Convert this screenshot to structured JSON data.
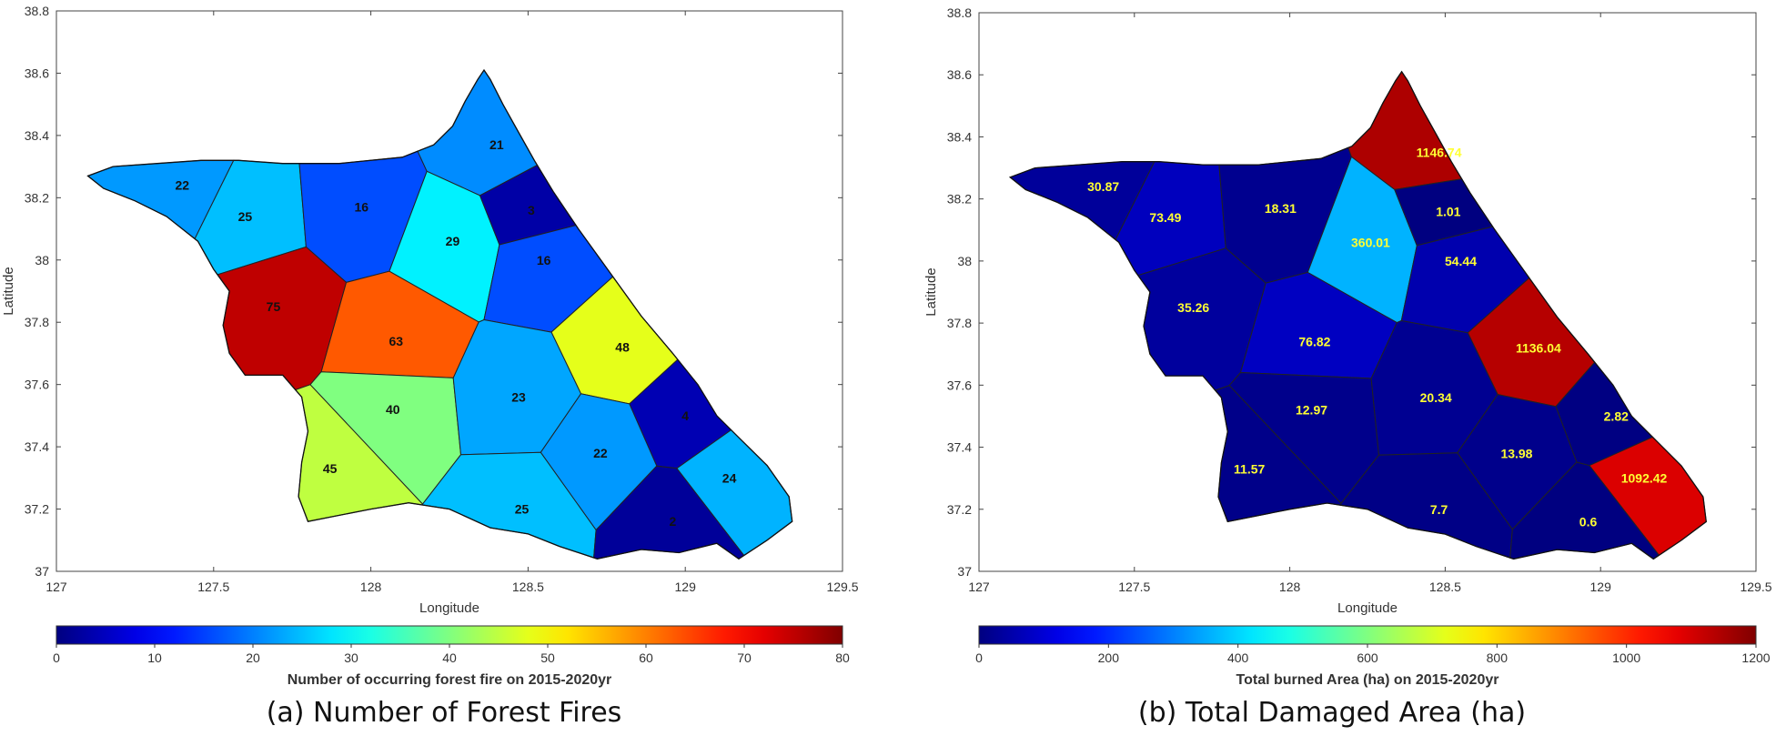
{
  "panels": [
    {
      "id": "a",
      "caption": "(a) Number of Forest Fires",
      "xlabel": "Longitude",
      "ylabel": "Latitude",
      "xticks": [
        "127",
        "127.5",
        "128",
        "128.5",
        "129",
        "129.5"
      ],
      "yticks": [
        "37",
        "37.2",
        "37.4",
        "37.6",
        "37.8",
        "38",
        "38.2",
        "38.4",
        "38.6",
        "38.8"
      ],
      "colorbar_title": "Number of occurring forest fire on 2015-2020yr",
      "colorbar_ticks": [
        "0",
        "10",
        "20",
        "30",
        "40",
        "50",
        "60",
        "70",
        "80"
      ],
      "label_color": "#111111"
    },
    {
      "id": "b",
      "caption": "(b) Total Damaged Area (ha)",
      "xlabel": "Longitude",
      "ylabel": "Latitude",
      "xticks": [
        "127",
        "127.5",
        "128",
        "128.5",
        "129",
        "129.5"
      ],
      "yticks": [
        "37",
        "37.2",
        "37.4",
        "37.6",
        "37.8",
        "38",
        "38.2",
        "38.4",
        "38.6",
        "38.8"
      ],
      "colorbar_title": "Total burned Area (ha) on 2015-2020yr",
      "colorbar_ticks": [
        "0",
        "200",
        "400",
        "600",
        "800",
        "1000",
        "1200"
      ],
      "label_color": "#ffff33"
    }
  ],
  "chart_data": [
    {
      "type": "heatmap",
      "xlim": [
        127,
        129.5
      ],
      "ylim": [
        37,
        38.8
      ],
      "clim": [
        0,
        80
      ],
      "colormap": "jet",
      "regions": [
        {
          "lon": 127.4,
          "lat": 38.24,
          "value": 22
        },
        {
          "lon": 127.6,
          "lat": 38.14,
          "value": 25
        },
        {
          "lon": 127.97,
          "lat": 38.17,
          "value": 16
        },
        {
          "lon": 128.4,
          "lat": 38.37,
          "value": 21
        },
        {
          "lon": 128.26,
          "lat": 38.06,
          "value": 29
        },
        {
          "lon": 128.51,
          "lat": 38.16,
          "value": 3
        },
        {
          "lon": 128.55,
          "lat": 38.0,
          "value": 16
        },
        {
          "lon": 127.69,
          "lat": 37.85,
          "value": 75
        },
        {
          "lon": 128.08,
          "lat": 37.74,
          "value": 63
        },
        {
          "lon": 128.8,
          "lat": 37.72,
          "value": 48
        },
        {
          "lon": 128.07,
          "lat": 37.52,
          "value": 40
        },
        {
          "lon": 128.47,
          "lat": 37.56,
          "value": 23
        },
        {
          "lon": 129.0,
          "lat": 37.5,
          "value": 4
        },
        {
          "lon": 127.87,
          "lat": 37.33,
          "value": 45
        },
        {
          "lon": 128.73,
          "lat": 37.38,
          "value": 22
        },
        {
          "lon": 129.14,
          "lat": 37.3,
          "value": 24
        },
        {
          "lon": 128.48,
          "lat": 37.2,
          "value": 25
        },
        {
          "lon": 128.96,
          "lat": 37.16,
          "value": 2
        }
      ]
    },
    {
      "type": "heatmap",
      "xlim": [
        127,
        129.5
      ],
      "ylim": [
        37,
        38.8
      ],
      "clim": [
        0,
        1200
      ],
      "colormap": "jet",
      "regions": [
        {
          "lon": 127.4,
          "lat": 38.24,
          "value": 30.87
        },
        {
          "lon": 127.6,
          "lat": 38.14,
          "value": 73.49
        },
        {
          "lon": 127.97,
          "lat": 38.17,
          "value": 18.31
        },
        {
          "lon": 128.48,
          "lat": 38.35,
          "value": 1146.74
        },
        {
          "lon": 128.26,
          "lat": 38.06,
          "value": 360.01
        },
        {
          "lon": 128.51,
          "lat": 38.16,
          "value": 1.01
        },
        {
          "lon": 128.55,
          "lat": 38.0,
          "value": 54.44
        },
        {
          "lon": 127.69,
          "lat": 37.85,
          "value": 35.26
        },
        {
          "lon": 128.08,
          "lat": 37.74,
          "value": 76.82
        },
        {
          "lon": 128.8,
          "lat": 37.72,
          "value": 1136.04
        },
        {
          "lon": 128.07,
          "lat": 37.52,
          "value": 12.97
        },
        {
          "lon": 128.47,
          "lat": 37.56,
          "value": 20.34
        },
        {
          "lon": 129.05,
          "lat": 37.5,
          "value": 2.82
        },
        {
          "lon": 127.87,
          "lat": 37.33,
          "value": 11.57
        },
        {
          "lon": 128.73,
          "lat": 37.38,
          "value": 13.98
        },
        {
          "lon": 129.14,
          "lat": 37.3,
          "value": 1092.42
        },
        {
          "lon": 128.48,
          "lat": 37.2,
          "value": 7.7
        },
        {
          "lon": 128.96,
          "lat": 37.16,
          "value": 0.6
        }
      ]
    }
  ]
}
